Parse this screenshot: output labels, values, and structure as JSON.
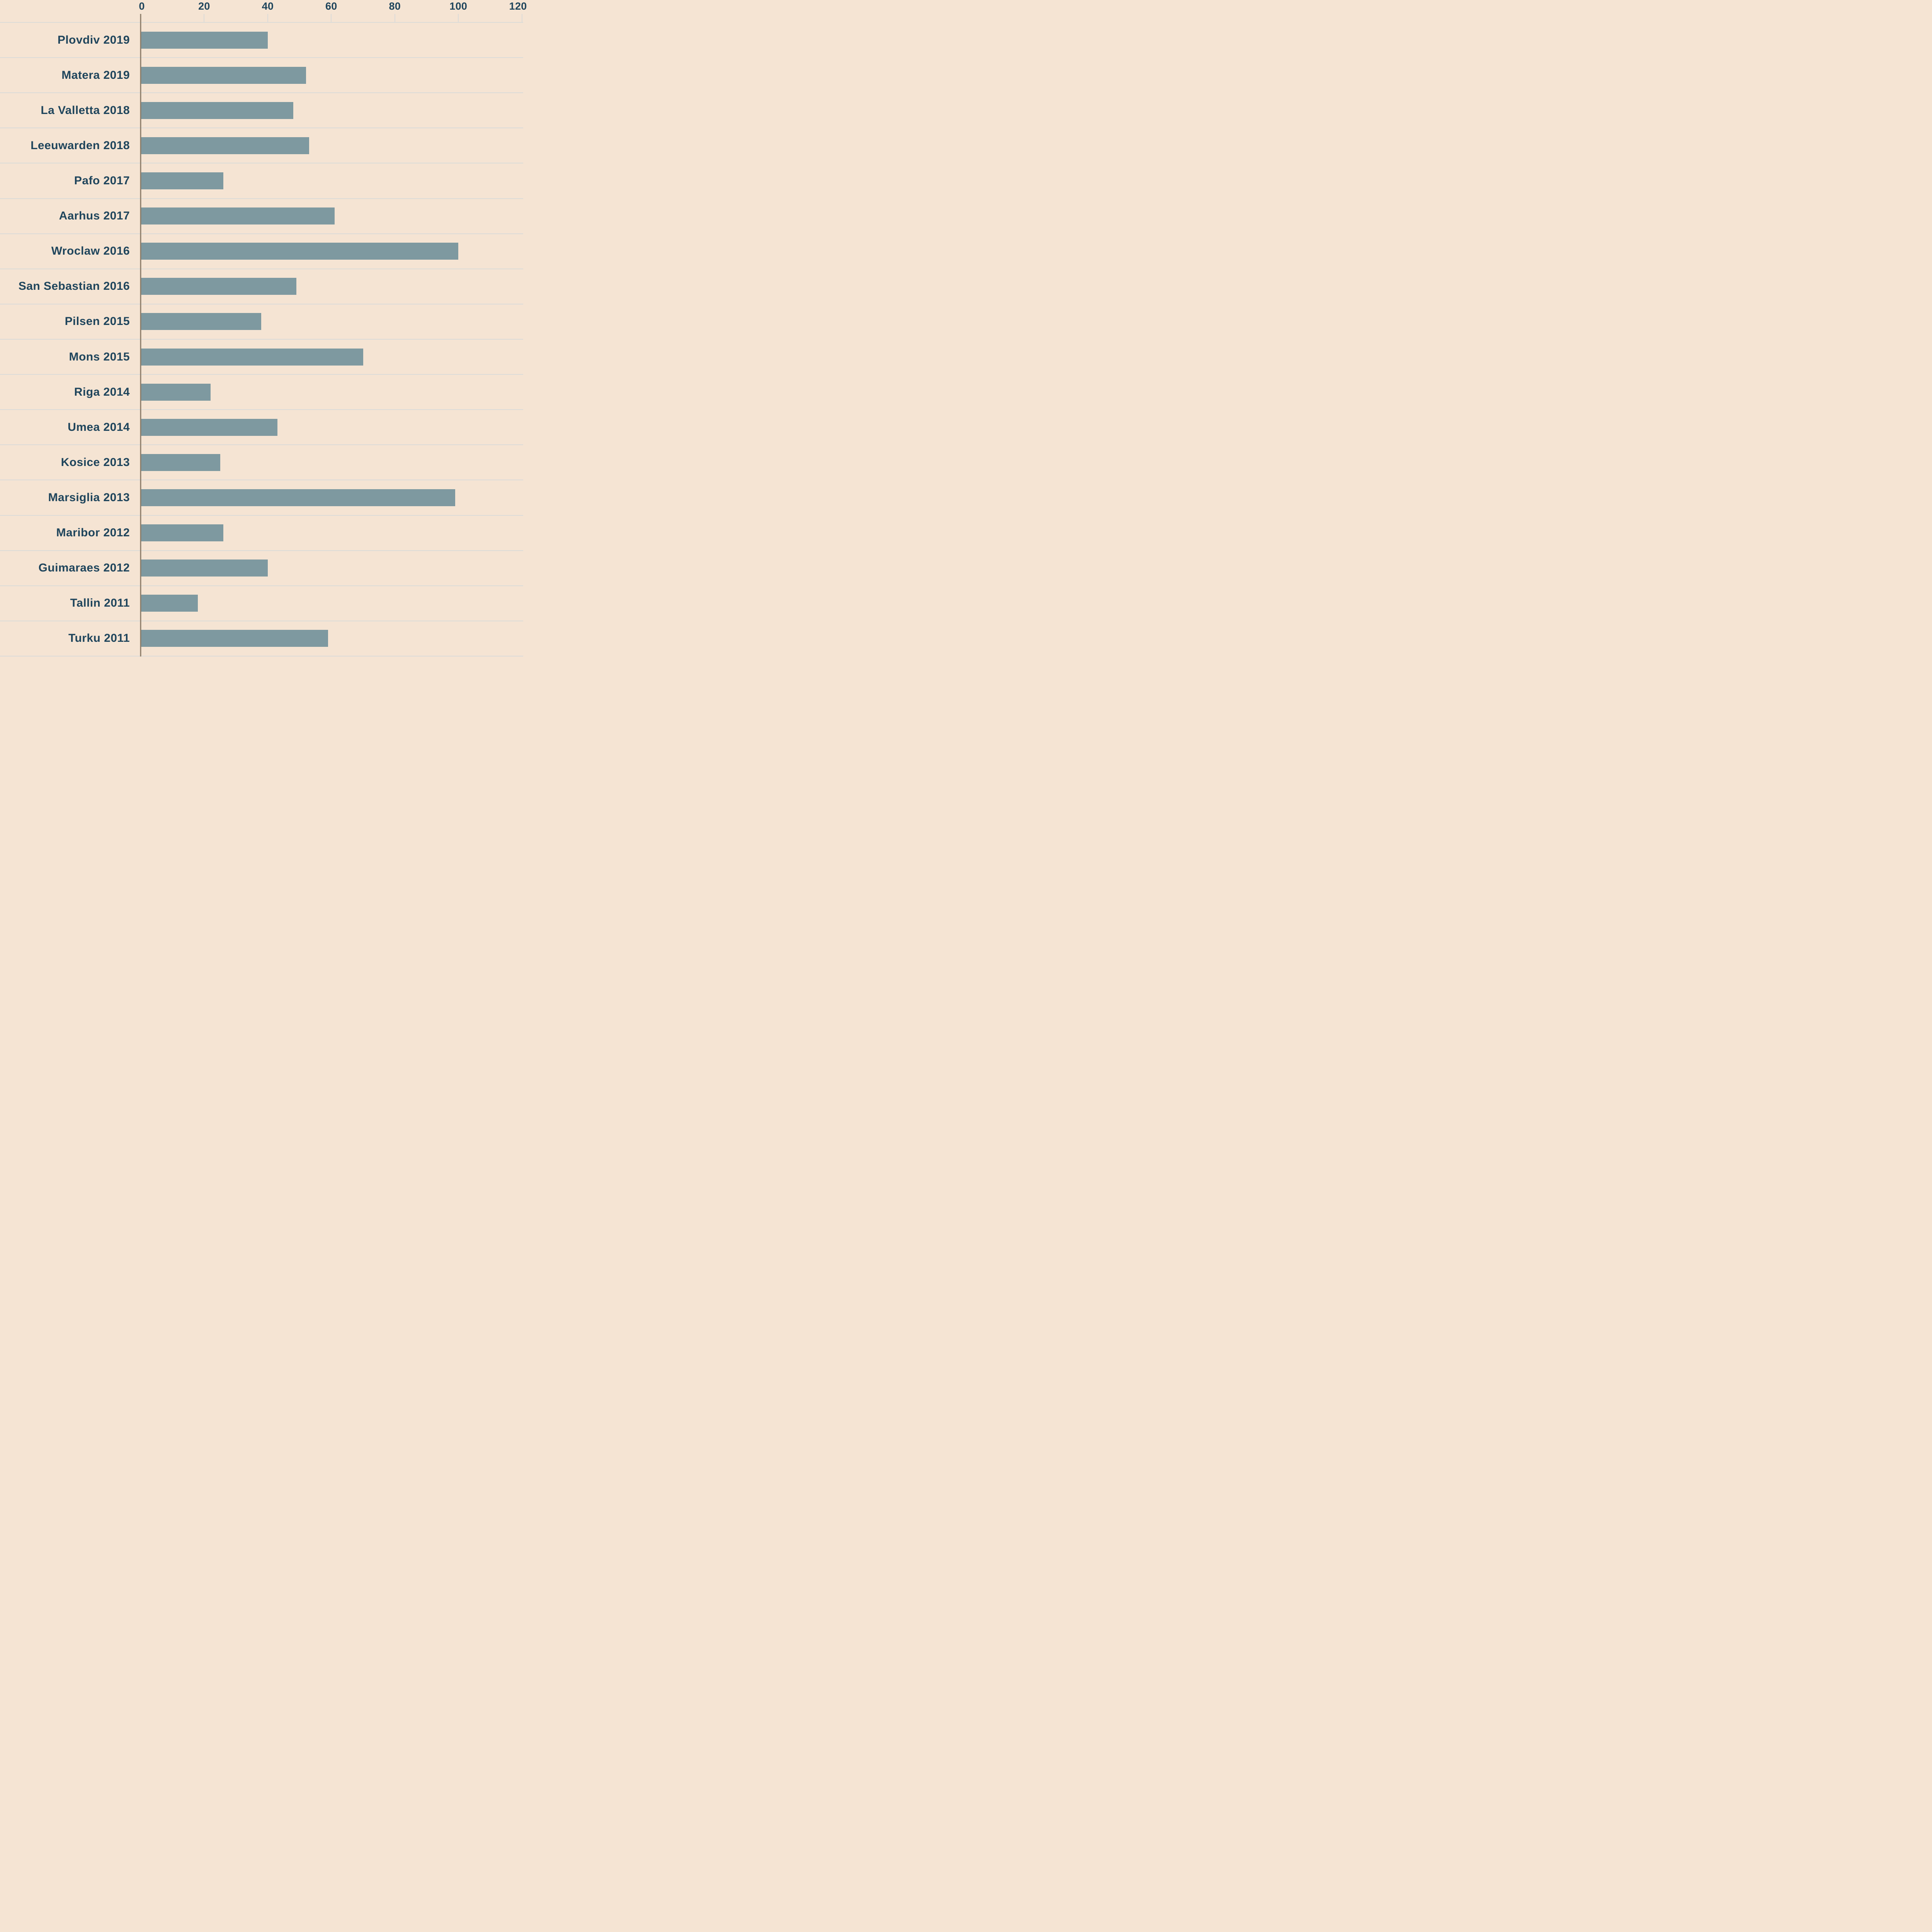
{
  "chart_data": {
    "type": "bar",
    "orientation": "horizontal",
    "title": "",
    "xlabel": "",
    "ylabel": "",
    "categories": [
      "Plovdiv 2019",
      "Matera 2019",
      "La Valletta 2018",
      "Leeuwarden 2018",
      "Pafo 2017",
      "Aarhus 2017",
      "Wroclaw 2016",
      "San Sebastian 2016",
      "Pilsen 2015",
      "Mons 2015",
      "Riga 2014",
      "Umea 2014",
      "Kosice 2013",
      "Marsiglia 2013",
      "Maribor 2012",
      "Guimaraes 2012",
      "Tallin 2011",
      "Turku 2011"
    ],
    "values": [
      40,
      52,
      48,
      53,
      26,
      61,
      100,
      49,
      38,
      70,
      22,
      43,
      25,
      99,
      26,
      40,
      18,
      59
    ],
    "x_ticks": [
      0,
      20,
      40,
      60,
      80,
      100,
      120
    ],
    "xlim": [
      0,
      122
    ],
    "axis_position": "top",
    "legend": "none",
    "grid": "horizontal row separators; short vertical tick marks below top axis labels",
    "colors": {
      "background": "#f5e4d3",
      "bar": "#7e99a0",
      "label_text": "#1f455c",
      "tick_text": "#1f455c",
      "row_separator": "#dbdbd8",
      "zero_axis_line": "#8b7b67"
    }
  }
}
